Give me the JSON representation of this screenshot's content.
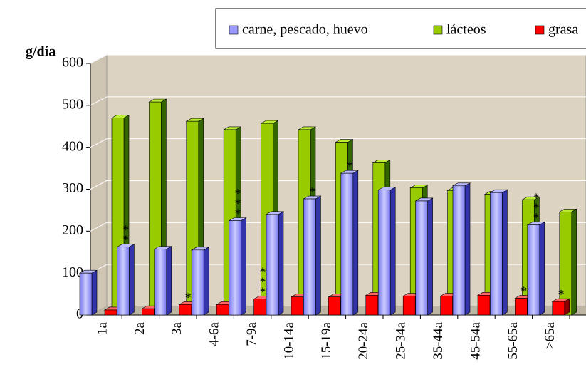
{
  "chart_data": {
    "type": "bar3d",
    "ylabel": "g/día",
    "categories": [
      "1a",
      "2a",
      "3a",
      "4-6a",
      "7-9a",
      "10-14a",
      "15-19a",
      "20-24a",
      "25-34a",
      "35-44a",
      "45-54a",
      "55-65a",
      ">65a"
    ],
    "series": [
      {
        "name": "carne, pescado, huevo",
        "color": "#9999ff",
        "values": [
          100,
          162,
          157,
          155,
          225,
          240,
          277,
          338,
          298,
          272,
          308,
          292,
          215
        ],
        "annotations": [
          null,
          "**",
          null,
          null,
          "***",
          null,
          "*",
          "*",
          null,
          null,
          null,
          null,
          "***"
        ]
      },
      {
        "name": "lácteos",
        "color": "#99cc00",
        "values": [
          470,
          508,
          462,
          442,
          457,
          442,
          412,
          363,
          303,
          297,
          288,
          275,
          246
        ],
        "annotations": [
          null,
          null,
          null,
          null,
          null,
          null,
          null,
          null,
          null,
          null,
          null,
          null,
          null
        ]
      },
      {
        "name": "grasa",
        "color": "#ff0000",
        "values": [
          12,
          15,
          25,
          25,
          38,
          43,
          43,
          47,
          45,
          45,
          47,
          40,
          32
        ],
        "annotations": [
          null,
          null,
          "*",
          null,
          "***",
          null,
          null,
          null,
          null,
          null,
          null,
          "*",
          "*"
        ]
      }
    ],
    "ylim": [
      0,
      600
    ],
    "yticks": [
      0,
      100,
      200,
      300,
      400,
      500,
      600
    ],
    "grid": true,
    "legend": "top"
  }
}
